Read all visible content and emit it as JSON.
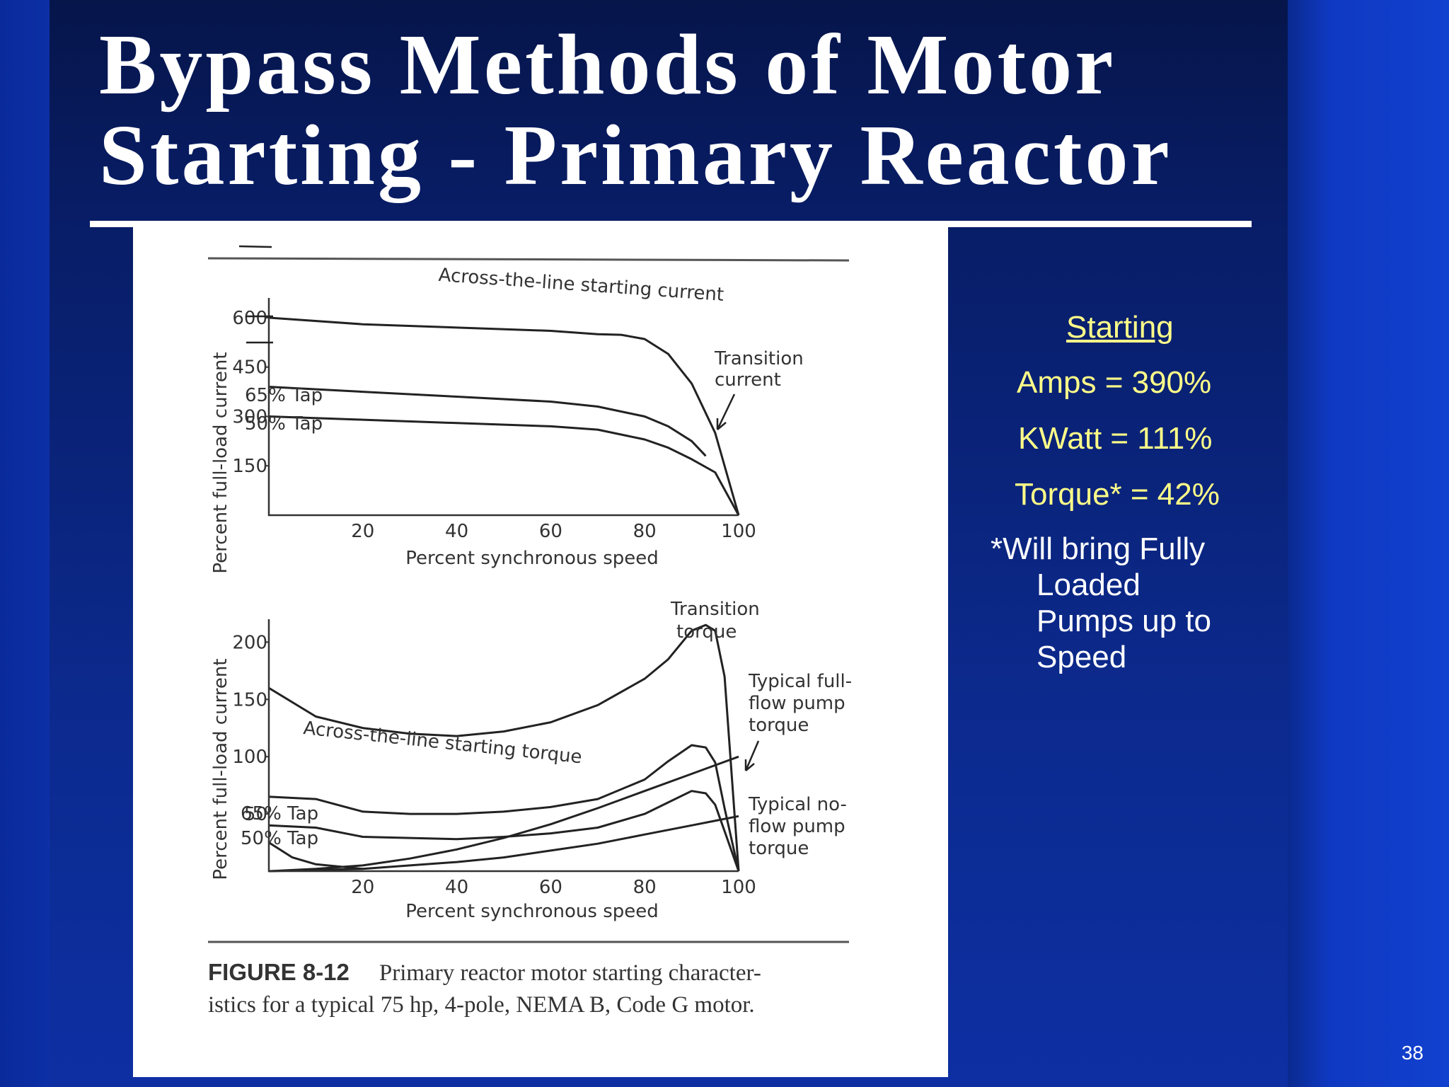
{
  "slide": {
    "title_line1": "Bypass Methods of Motor",
    "title_line2": "Starting - Primary Reactor",
    "page_number": "38"
  },
  "side_panel": {
    "heading": "Starting",
    "amps": "Amps = 390%",
    "kwatt": "KWatt = 111%",
    "torque": "Torque* = 42%",
    "note_line1": "*Will bring Fully",
    "note_line2": "Loaded",
    "note_line3": "Pumps up to",
    "note_line4": "Speed",
    "colors": {
      "text": "#ffff88",
      "note": "#ffffff",
      "background": "#0c2a8e"
    }
  },
  "figure": {
    "caption_number": "FIGURE 8-12",
    "caption_text": "Primary reactor motor starting character-",
    "caption_text2": "istics for a typical 75 hp, 4-pole, NEMA B, Code G motor."
  },
  "chart_data": [
    {
      "type": "line",
      "xlabel": "Percent synchronous speed",
      "ylabel": "Percent full-load current",
      "x_ticks": [
        20,
        40,
        60,
        80,
        100
      ],
      "y_ticks": [
        150,
        300,
        450,
        600
      ],
      "xlim": [
        0,
        100
      ],
      "ylim": [
        0,
        660
      ],
      "annotations": [
        "Transition current"
      ],
      "series": [
        {
          "name": "Across-the-line starting current",
          "x": [
            0,
            20,
            40,
            60,
            70,
            75,
            80,
            85,
            90,
            95,
            100
          ],
          "y": [
            600,
            580,
            570,
            560,
            550,
            548,
            535,
            490,
            400,
            250,
            0
          ]
        },
        {
          "name": "65% Tap",
          "x": [
            0,
            20,
            40,
            60,
            70,
            80,
            85,
            90,
            93
          ],
          "y": [
            390,
            375,
            360,
            345,
            330,
            300,
            270,
            225,
            180
          ]
        },
        {
          "name": "50% Tap",
          "x": [
            0,
            20,
            40,
            60,
            70,
            80,
            85,
            90,
            95,
            100
          ],
          "y": [
            300,
            290,
            280,
            270,
            260,
            230,
            205,
            170,
            130,
            0
          ]
        }
      ]
    },
    {
      "type": "line",
      "xlabel": "Percent synchronous speed",
      "ylabel": "Percent full-load current",
      "x_ticks": [
        20,
        40,
        60,
        80,
        100
      ],
      "y_ticks": [
        50,
        100,
        150,
        200
      ],
      "xlim": [
        0,
        100
      ],
      "ylim": [
        0,
        220
      ],
      "annotations": [
        "Transition torque",
        "Typical full-flow pump torque",
        "Typical no-flow pump torque"
      ],
      "series": [
        {
          "name": "Across-the-line starting torque",
          "x": [
            0,
            10,
            20,
            30,
            40,
            50,
            60,
            70,
            80,
            85,
            90,
            93,
            95,
            97,
            100
          ],
          "y": [
            160,
            135,
            125,
            120,
            118,
            122,
            130,
            145,
            168,
            185,
            210,
            215,
            210,
            170,
            0
          ]
        },
        {
          "name": "65% Tap",
          "x": [
            0,
            10,
            20,
            30,
            40,
            50,
            60,
            70,
            80,
            85,
            90,
            93,
            95,
            97,
            100
          ],
          "y": [
            65,
            63,
            52,
            50,
            50,
            52,
            56,
            63,
            80,
            96,
            110,
            108,
            95,
            55,
            0
          ]
        },
        {
          "name": "50% Tap",
          "x": [
            0,
            10,
            20,
            30,
            40,
            50,
            60,
            70,
            80,
            85,
            90,
            93,
            95,
            97,
            100
          ],
          "y": [
            40,
            38,
            30,
            29,
            28,
            30,
            33,
            38,
            50,
            60,
            70,
            68,
            58,
            35,
            0
          ]
        },
        {
          "name": "Typical full-flow pump torque",
          "x": [
            0,
            10,
            20,
            30,
            40,
            50,
            60,
            70,
            80,
            90,
            100
          ],
          "y": [
            0,
            2,
            5,
            11,
            19,
            29,
            41,
            55,
            70,
            85,
            100
          ]
        },
        {
          "name": "Typical no-flow pump torque",
          "x": [
            0,
            10,
            20,
            30,
            40,
            50,
            60,
            70,
            80,
            90,
            100
          ],
          "y": [
            0,
            1,
            2,
            5,
            8,
            12,
            18,
            24,
            32,
            40,
            48
          ]
        },
        {
          "name": "",
          "x": [
            0,
            5,
            10,
            20
          ],
          "y": [
            25,
            12,
            6,
            2
          ]
        }
      ]
    }
  ]
}
